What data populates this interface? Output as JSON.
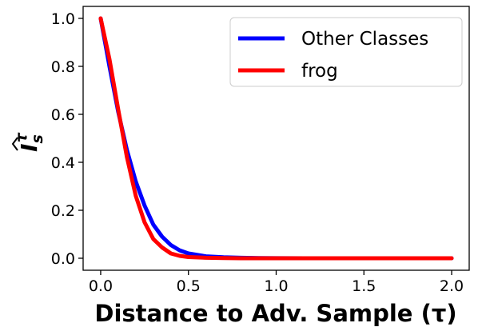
{
  "chart_data": {
    "type": "line",
    "title": "",
    "xlabel": "Distance to Adv. Sample (τ)",
    "ylabel": "Î_s^τ",
    "ylabel_parts": {
      "base": "I",
      "sub": "s",
      "sup": "τ"
    },
    "xlim": [
      -0.1,
      2.1
    ],
    "ylim": [
      -0.05,
      1.05
    ],
    "xticks": [
      0.0,
      0.5,
      1.0,
      1.5,
      2.0
    ],
    "xtick_labels": [
      "0.0",
      "0.5",
      "1.0",
      "1.5",
      "2.0"
    ],
    "yticks": [
      0.0,
      0.2,
      0.4,
      0.6,
      0.8,
      1.0
    ],
    "ytick_labels": [
      "0.0",
      "0.2",
      "0.4",
      "0.6",
      "0.8",
      "1.0"
    ],
    "grid": false,
    "legend": "top-right",
    "series": [
      {
        "name": "Other Classes",
        "color": "#0000ff",
        "x": [
          0.0,
          0.05,
          0.1,
          0.15,
          0.2,
          0.25,
          0.3,
          0.35,
          0.4,
          0.45,
          0.5,
          0.6,
          0.7,
          0.8,
          0.9,
          1.0,
          1.2,
          1.5,
          2.0
        ],
        "y": [
          1.0,
          0.8,
          0.61,
          0.45,
          0.32,
          0.22,
          0.14,
          0.09,
          0.055,
          0.033,
          0.02,
          0.008,
          0.004,
          0.002,
          0.001,
          0.0005,
          0.0,
          0.0,
          0.0
        ]
      },
      {
        "name": "frog",
        "color": "#ff0000",
        "x": [
          0.0,
          0.05,
          0.1,
          0.15,
          0.2,
          0.25,
          0.3,
          0.35,
          0.4,
          0.45,
          0.5,
          0.6,
          0.7,
          0.8,
          0.9,
          1.0,
          1.2,
          1.5,
          2.0
        ],
        "y": [
          1.0,
          0.83,
          0.62,
          0.42,
          0.26,
          0.15,
          0.08,
          0.045,
          0.02,
          0.01,
          0.005,
          0.002,
          0.001,
          0.0,
          0.0,
          0.0,
          0.0,
          0.0,
          0.0
        ]
      }
    ]
  }
}
